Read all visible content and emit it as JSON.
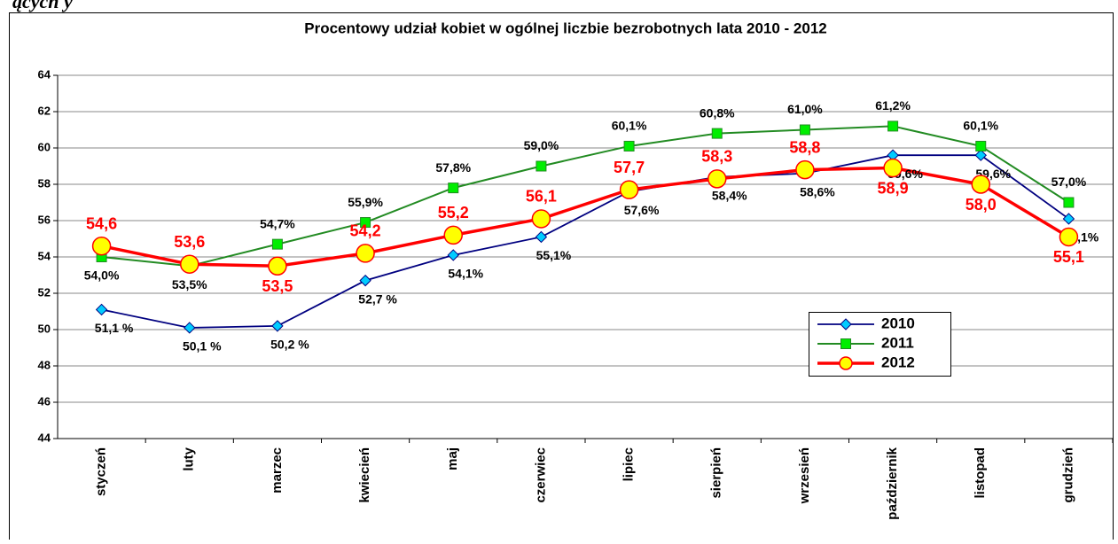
{
  "page_fragment": "ących y",
  "chart_data": {
    "type": "line",
    "title": "Procentowy udział  kobiet w ogólnej liczbie  bezrobotnych lata 2010 - 2012",
    "categories": [
      "styczeń",
      "luty",
      "marzec",
      "kwiecień",
      "maj",
      "czerwiec",
      "lipiec",
      "sierpień",
      "wrzesień",
      "październik",
      "listopad",
      "grudzień"
    ],
    "ylim": [
      44,
      64
    ],
    "yticks": [
      44,
      46,
      48,
      50,
      52,
      54,
      56,
      58,
      60,
      62,
      64
    ],
    "grid": true,
    "legend": "right",
    "series": [
      {
        "name": "2010",
        "color": "#000080",
        "marker": "diamond",
        "marker_color": "#00ccff",
        "values": [
          51.1,
          50.1,
          50.2,
          52.7,
          54.1,
          55.1,
          57.6,
          58.4,
          58.6,
          59.6,
          59.6,
          56.1
        ],
        "value_labels": [
          "51,1 %",
          "50,1 %",
          "50,2 %",
          "52,7 %",
          "54,1%",
          "55,1%",
          "57,6%",
          "58,4%",
          "58,6%",
          "59,6%",
          "59,6%",
          "56,1%"
        ]
      },
      {
        "name": "2011",
        "color": "#228b22",
        "marker": "square",
        "marker_color": "#00ee00",
        "values": [
          54.0,
          53.5,
          54.7,
          55.9,
          57.8,
          59.0,
          60.1,
          60.8,
          61.0,
          61.2,
          60.1,
          57.0
        ],
        "value_labels": [
          "54,0%",
          "53,5%",
          "54,7%",
          "55,9%",
          "57,8%",
          "59,0%",
          "60,1%",
          "60,8%",
          "61,0%",
          "61,2%",
          "60,1%",
          "57,0%"
        ]
      },
      {
        "name": "2012",
        "color": "#ff0000",
        "marker": "circle",
        "marker_color": "#ffff00",
        "values": [
          54.6,
          53.6,
          53.5,
          54.2,
          55.2,
          56.1,
          57.7,
          58.3,
          58.8,
          58.9,
          58.0,
          55.1
        ],
        "value_labels": [
          "54,6",
          "53,6",
          "53,5",
          "54,2",
          "55,2",
          "56,1",
          "57,7",
          "58,3",
          "58,8",
          "58,9",
          "58,0",
          "55,1"
        ]
      }
    ]
  }
}
